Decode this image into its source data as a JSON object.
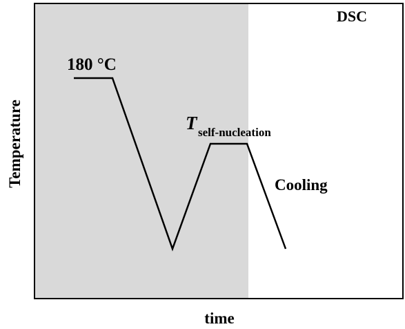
{
  "title": "DSC",
  "axes": {
    "x_label": "time",
    "y_label": "Temperature"
  },
  "annotations": {
    "start": "180 °C",
    "hold_symbol": "T",
    "hold_subscript": "self-nucleation",
    "cooling": "Cooling"
  }
}
